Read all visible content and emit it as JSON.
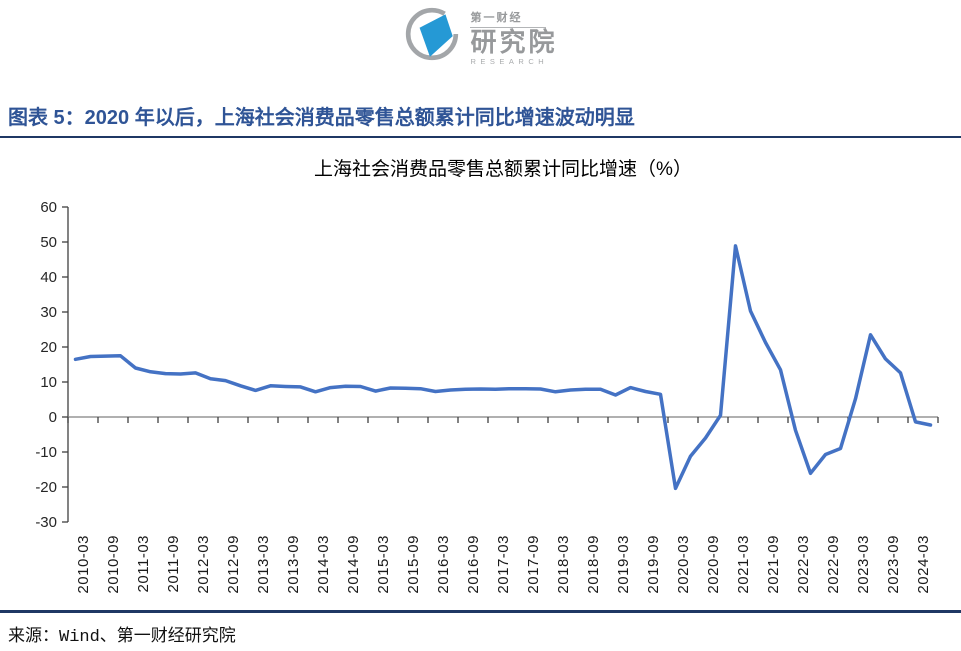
{
  "logo": {
    "brand_top": "第一财经",
    "brand_main": "研究院",
    "brand_sub": "RESEARCH"
  },
  "figure": {
    "heading": "图表 5：2020 年以后，上海社会消费品零售总额累计同比增速波动明显"
  },
  "source_line": "来源：Wind、第一财经研究院",
  "colors": {
    "heading_blue": "#2f5496",
    "rule_navy": "#1f3864",
    "line_blue": "#4472C4",
    "zero_line": "#808080",
    "axis": "#404040",
    "logo_gray": "#97999b",
    "logo_blue": "#2599d5"
  },
  "chart_data": {
    "type": "line",
    "title": "上海社会消费品零售总额累计同比增速（%）",
    "xlabel": "",
    "ylabel": "",
    "ylim": [
      -30,
      60
    ],
    "y_ticks": [
      60,
      50,
      40,
      30,
      20,
      10,
      0,
      -10,
      -20,
      -30
    ],
    "grid": false,
    "legend_position": "none",
    "axis_cross_y": 0,
    "x_tick_labels": [
      "2010-03",
      "2010-09",
      "2011-03",
      "2011-09",
      "2012-03",
      "2012-09",
      "2013-03",
      "2013-09",
      "2014-03",
      "2014-09",
      "2015-03",
      "2015-09",
      "2016-03",
      "2016-09",
      "2017-03",
      "2017-09",
      "2018-03",
      "2018-09",
      "2019-03",
      "2019-09",
      "2020-03",
      "2020-09",
      "2021-03",
      "2021-09",
      "2022-03",
      "2022-09",
      "2023-03",
      "2023-09",
      "2024-03"
    ],
    "series": [
      {
        "name": "上海社会消费品零售总额累计同比增速",
        "color": "#4472C4",
        "x": [
          "2010-03",
          "2010-06",
          "2010-09",
          "2010-12",
          "2011-03",
          "2011-06",
          "2011-09",
          "2011-12",
          "2012-03",
          "2012-06",
          "2012-09",
          "2012-12",
          "2013-03",
          "2013-06",
          "2013-09",
          "2013-12",
          "2014-03",
          "2014-06",
          "2014-09",
          "2014-12",
          "2015-03",
          "2015-06",
          "2015-09",
          "2015-12",
          "2016-03",
          "2016-06",
          "2016-09",
          "2016-12",
          "2017-03",
          "2017-06",
          "2017-09",
          "2017-12",
          "2018-03",
          "2018-06",
          "2018-09",
          "2018-12",
          "2019-03",
          "2019-06",
          "2019-09",
          "2019-12",
          "2020-03",
          "2020-06",
          "2020-09",
          "2020-12",
          "2021-03",
          "2021-06",
          "2021-09",
          "2021-12",
          "2022-03",
          "2022-06",
          "2022-09",
          "2022-12",
          "2023-03",
          "2023-06",
          "2023-09",
          "2023-12",
          "2024-03",
          "2024-06"
        ],
        "values": [
          16.5,
          17.3,
          17.4,
          17.5,
          14.0,
          12.9,
          12.4,
          12.3,
          12.6,
          10.9,
          10.4,
          8.9,
          7.6,
          8.9,
          8.7,
          8.6,
          7.2,
          8.4,
          8.8,
          8.7,
          7.4,
          8.3,
          8.2,
          8.1,
          7.3,
          7.7,
          7.9,
          8.0,
          7.9,
          8.1,
          8.1,
          8.0,
          7.2,
          7.7,
          7.9,
          7.9,
          6.3,
          8.4,
          7.3,
          6.5,
          -20.4,
          -11.2,
          -6.0,
          0.5,
          48.9,
          30.3,
          21.3,
          13.5,
          -3.8,
          -16.1,
          -10.7,
          -9.0,
          5.2,
          23.5,
          16.6,
          12.6,
          -1.4,
          -2.3
        ]
      }
    ]
  }
}
